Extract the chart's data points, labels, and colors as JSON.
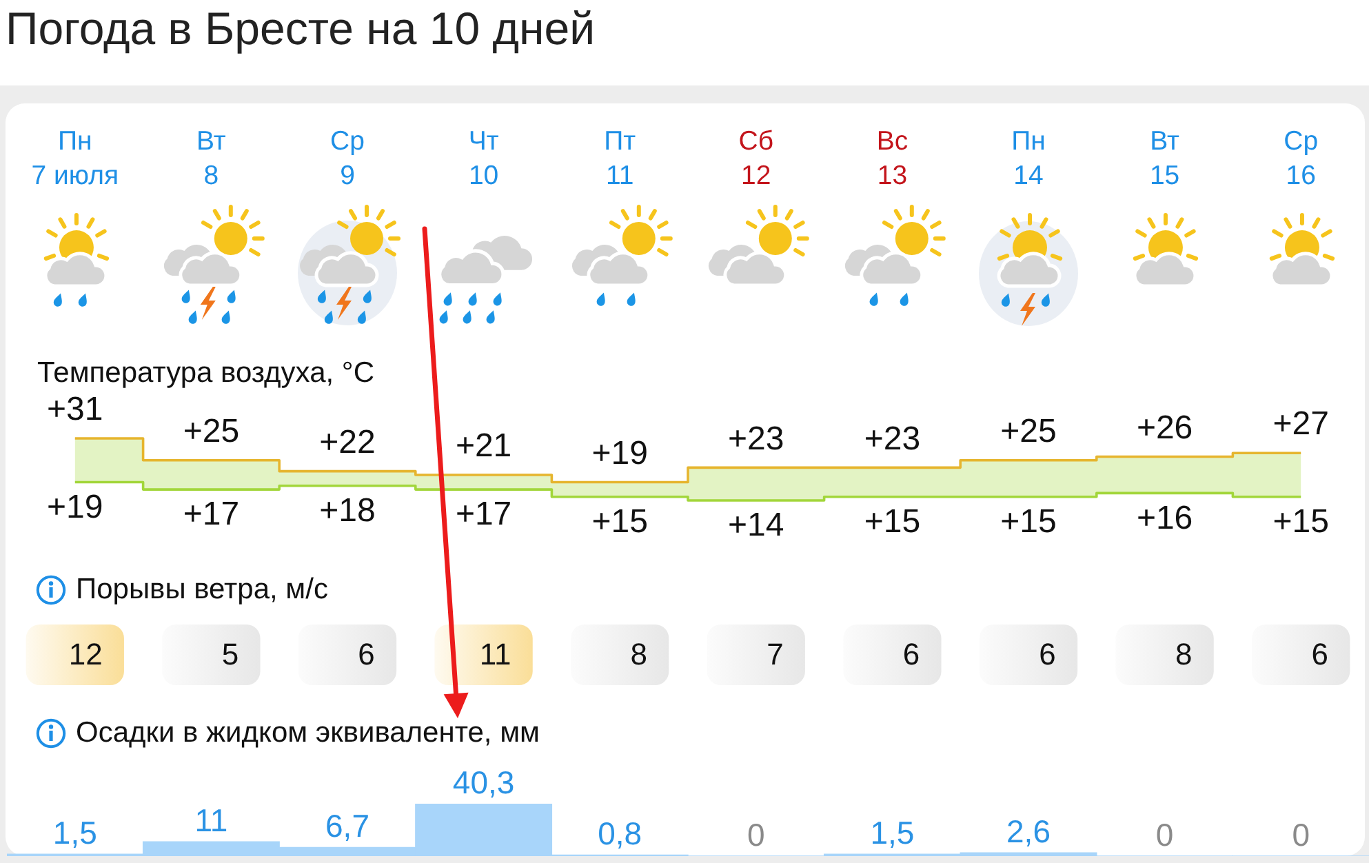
{
  "chart_data": [
    {
      "type": "step",
      "title": "Погода в Бресте на 10 дней",
      "subtitle": "Температура воздуха, °C",
      "categories": [
        "Пн\n7 июля",
        "Вт\n8",
        "Ср\n9",
        "Чт\n10",
        "Пт\n11",
        "Сб\n12",
        "Вс\n13",
        "Пн\n14",
        "Вт\n15",
        "Ср\n16"
      ],
      "series": [
        {
          "color": "#e6b52e",
          "values": [
            31,
            25,
            22,
            21,
            19,
            23,
            23,
            25,
            26,
            27
          ],
          "value_labels": [
            "+31",
            "+25",
            "+22",
            "+21",
            "+19",
            "+23",
            "+23",
            "+25",
            "+26",
            "+27"
          ]
        },
        {
          "color": "#a2d63a",
          "values": [
            19,
            17,
            18,
            17,
            15,
            14,
            15,
            15,
            16,
            15
          ],
          "value_labels": [
            "+19",
            "+17",
            "+18",
            "+17",
            "+15",
            "+14",
            "+15",
            "+15",
            "+16",
            "+15"
          ],
          "lower": [
            19,
            17,
            18,
            17,
            15,
            14,
            15,
            15,
            16,
            15
          ],
          "upper": [
            31,
            25,
            22,
            21,
            19,
            23,
            23,
            25,
            26,
            27
          ]
        }
      ],
      "tick_labels": "x"
    },
    {
      "type": "other",
      "title": "Порывы ветра, м/с",
      "categories": [
        null,
        null,
        null,
        null,
        null,
        null,
        null,
        null,
        null,
        null
      ],
      "values": [
        12,
        5,
        6,
        11,
        8,
        7,
        6,
        6,
        8,
        6
      ],
      "data_labels": true
    },
    {
      "type": "bar",
      "title": "Осадки в жидком эквиваленте, мм",
      "categories": [
        null,
        null,
        null,
        null,
        null,
        null,
        null,
        null,
        null,
        null
      ],
      "values": [
        1.5,
        11,
        6.7,
        40.3,
        0.8,
        0,
        1.5,
        2.6,
        0,
        0
      ],
      "value_labels": [
        "1,5",
        "11",
        "6,7",
        "40,3",
        "0,8",
        "0",
        "1,5",
        "2,6",
        "0",
        "0"
      ],
      "color": "#a8d5fa",
      "tick_labels": false
    }
  ]
}
